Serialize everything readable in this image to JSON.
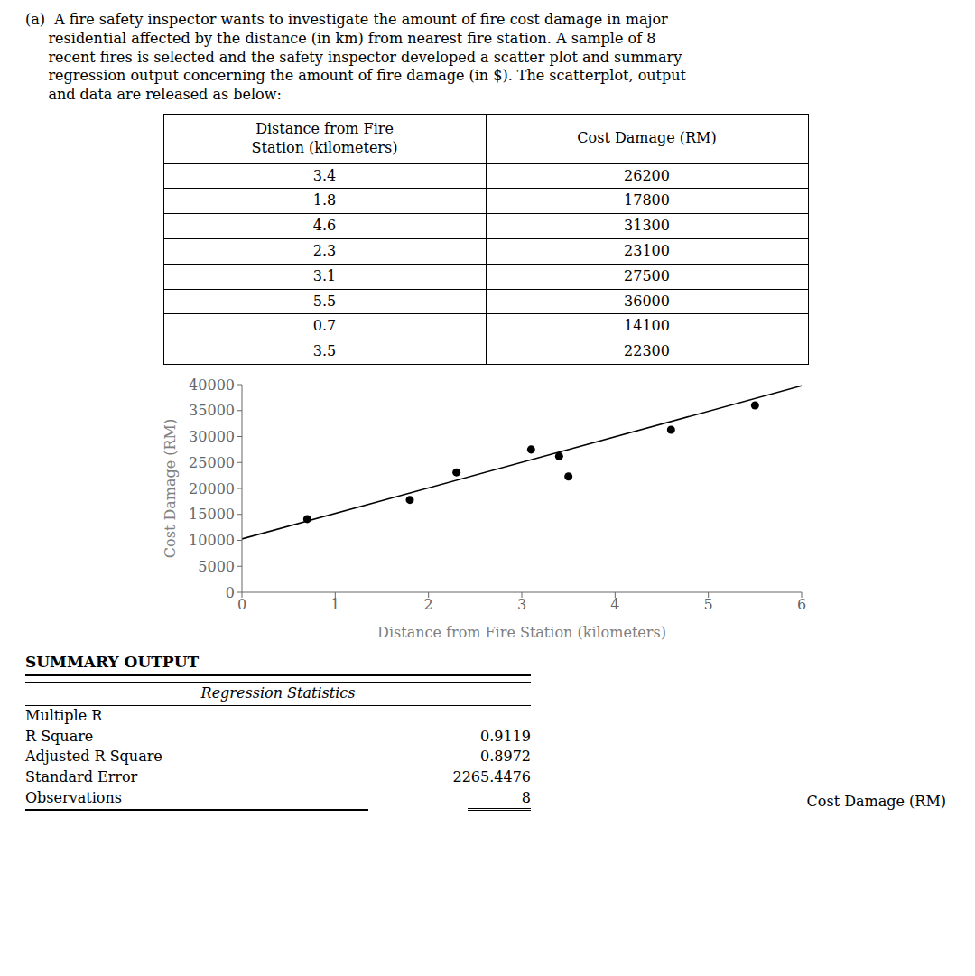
{
  "chart_data": {
    "type": "scatter",
    "xlabel": "Distance from Fire Station (kilometers)",
    "ylabel": "Cost Damage (RM)",
    "xlim": [
      0,
      6
    ],
    "ylim": [
      0,
      40000
    ],
    "xticks": [
      0,
      1,
      2,
      3,
      4,
      5,
      6
    ],
    "yticks": [
      0,
      5000,
      10000,
      15000,
      20000,
      25000,
      30000,
      35000,
      40000
    ],
    "grid": false,
    "series": [
      {
        "type": "scatter",
        "marker": "circle",
        "color": "#000000",
        "x": [
          3.4,
          1.8,
          4.6,
          2.3,
          3.1,
          5.5,
          0.7,
          3.5
        ],
        "values": [
          26200,
          17800,
          31300,
          23100,
          27500,
          36000,
          14100,
          22300
        ]
      },
      {
        "type": "line",
        "line_style": "solid",
        "color": "#000000",
        "x": [
          0,
          6
        ],
        "values": [
          10278,
          39792
        ]
      }
    ],
    "annotations": {
      "paragraph": [
        "(a)  A fire safety inspector wants to investigate the amount of fire cost damage in major",
        "     residential affected by the distance (in km) from nearest fire station. A sample of 8",
        "     recent fires is selected and the safety inspector developed a scatter plot and summary",
        "     regression output concerning the amount of fire damage (in $). The scatterplot, output",
        "     and data are released as below:"
      ],
      "table_headers": [
        [
          "Distance from Fire",
          "Station (kilometers)"
        ],
        [
          "Cost Damage (RM)"
        ]
      ],
      "summary_title": "SUMMARY OUTPUT",
      "summary_subtitle": "Regression Statistics",
      "summary_rows": [
        {
          "label": "Multiple R"
        },
        {
          "label": "R Square",
          "value": 0.9119
        },
        {
          "label": "Adjusted R Square",
          "value": 0.8972
        },
        {
          "label": "Standard Error",
          "value": 2265.4476
        },
        {
          "label": "Observations",
          "value": 8
        }
      ],
      "footer": "Cost Damage (RM)"
    }
  }
}
